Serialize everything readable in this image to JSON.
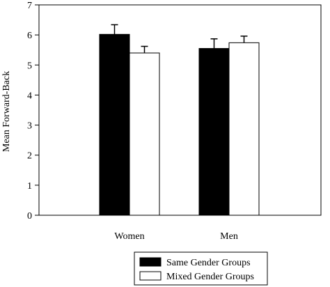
{
  "chart_data": {
    "type": "bar",
    "categories": [
      "Women",
      "Men"
    ],
    "series": [
      {
        "name": "Same Gender Groups",
        "values": [
          6.02,
          5.55
        ],
        "errors": [
          0.32,
          0.32
        ],
        "fill": "#000000"
      },
      {
        "name": "Mixed Gender Groups",
        "values": [
          5.4,
          5.74
        ],
        "errors": [
          0.22,
          0.22
        ],
        "fill": "#ffffff"
      }
    ],
    "ylabel": "Mean Forward-Back",
    "xlabel": "",
    "ylim": [
      0,
      7
    ],
    "yticks": [
      "0",
      "1",
      "2",
      "3",
      "4",
      "5",
      "6",
      "7"
    ],
    "grid": false,
    "legend_position": "bottom"
  }
}
